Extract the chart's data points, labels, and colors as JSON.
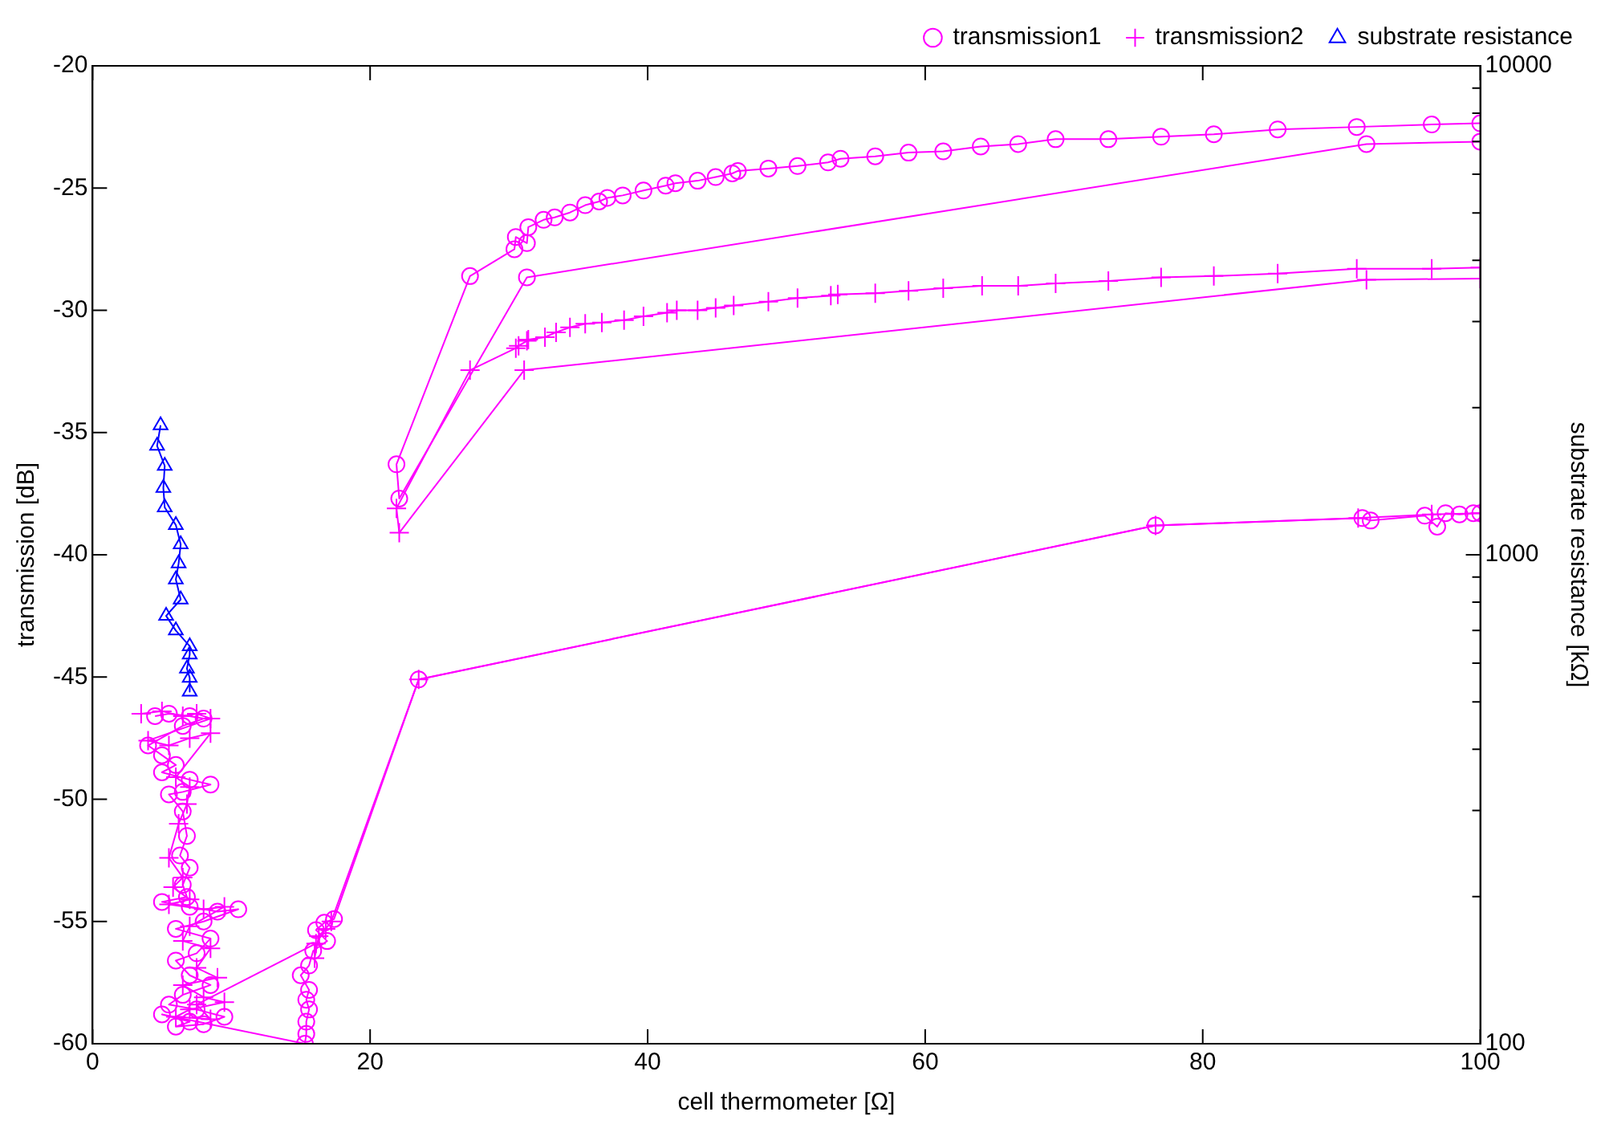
{
  "chart_data": {
    "type": "line",
    "xlabel": "cell thermometer [Ω]",
    "ylabel": "transmission [dB]",
    "y2label": "substrate resistance [kΩ]",
    "xlim": [
      0,
      100
    ],
    "xticks": [
      0,
      20,
      40,
      60,
      80,
      100
    ],
    "ylim": [
      -60,
      -20
    ],
    "yticks": [
      -60,
      -55,
      -50,
      -45,
      -40,
      -35,
      -30,
      -25,
      -20
    ],
    "y2lim": [
      100,
      10000
    ],
    "y2ticks": [
      100,
      {
        "value": 200,
        "label": null
      },
      {
        "value": 300,
        "label": null
      },
      {
        "value": 400,
        "label": null
      },
      {
        "value": 500,
        "label": null
      },
      {
        "value": 600,
        "label": null
      },
      {
        "value": 700,
        "label": null
      },
      {
        "value": 800,
        "label": null
      },
      {
        "value": 900,
        "label": null
      },
      1000,
      {
        "value": 2000,
        "label": null
      },
      {
        "value": 3000,
        "label": null
      },
      {
        "value": 4000,
        "label": null
      },
      {
        "value": 5000,
        "label": null
      },
      {
        "value": 6000,
        "label": null
      },
      {
        "value": 7000,
        "label": null
      },
      {
        "value": 8000,
        "label": null
      },
      {
        "value": 9000,
        "label": null
      },
      10000
    ],
    "log": "y2",
    "grid": false,
    "legend": "top right",
    "line_style": "solid",
    "series": [
      {
        "name": "transmission1",
        "color": "#ff00ff",
        "marker": "circle",
        "x": [
          4.5,
          5.5,
          7,
          8,
          6.5,
          4,
          5,
          6,
          5,
          7,
          8.5,
          6.5,
          5.5,
          6.5,
          6.8,
          6.3,
          7,
          6.5,
          6.8,
          5,
          7,
          9,
          10.5,
          8,
          6,
          8.5,
          7.5,
          6,
          7,
          8.5,
          6.5,
          5.5,
          7.5,
          9.5,
          8,
          6,
          7,
          5,
          15.3,
          15.4,
          15.4,
          15.6,
          15.4,
          15.6,
          15.0,
          15.6,
          15.9,
          16.9,
          16.1,
          16.7,
          17.4,
          23.5,
          76.6,
          91.5,
          92.1,
          96,
          96.9,
          97.5,
          98.5,
          99.5,
          100,
          null,
          100,
          91.8,
          31.3,
          22.1,
          21.9,
          27.2,
          30.4,
          30.5,
          31.3,
          31.4,
          32.5,
          33.3,
          34.4,
          35.5,
          36.5,
          37.1,
          38.2,
          39.7,
          41.3,
          42.0,
          43.6,
          44.9,
          46.1,
          46.5,
          48.7,
          50.8,
          53.0,
          53.9,
          56.4,
          58.8,
          61.3,
          64.0,
          66.7,
          69.4,
          73.2,
          77.0,
          80.8,
          85.4,
          91.1,
          96.5,
          100
        ],
        "values": [
          -46.6,
          -46.5,
          -46.6,
          -46.7,
          -47.0,
          -47.8,
          -48.2,
          -48.6,
          -48.9,
          -49.2,
          -49.4,
          -49.7,
          -49.8,
          -50.5,
          -51.5,
          -52.3,
          -52.8,
          -53.5,
          -54.0,
          -54.2,
          -54.4,
          -54.6,
          -54.5,
          -55.0,
          -55.3,
          -55.7,
          -56.3,
          -56.6,
          -57.2,
          -57.6,
          -58.0,
          -58.4,
          -58.6,
          -58.9,
          -59.2,
          -59.3,
          -59.1,
          -58.8,
          -60,
          -59.6,
          -59.1,
          -58.6,
          -58.2,
          -57.8,
          -57.2,
          -56.8,
          -56.2,
          -55.8,
          -55.35,
          -55.05,
          -54.9,
          -45.1,
          -38.8,
          -38.5,
          -38.6,
          -38.4,
          -38.85,
          -38.3,
          -38.35,
          -38.3,
          -38.3,
          null,
          -23.1,
          -23.2,
          -28.65,
          -37.7,
          -36.3,
          -28.6,
          -27.5,
          -27.0,
          -27.25,
          -26.6,
          -26.3,
          -26.2,
          -26.0,
          -25.7,
          -25.55,
          -25.4,
          -25.3,
          -25.1,
          -24.9,
          -24.8,
          -24.7,
          -24.55,
          -24.4,
          -24.3,
          -24.2,
          -24.1,
          -23.95,
          -23.8,
          -23.7,
          -23.55,
          -23.5,
          -23.3,
          -23.2,
          -23.0,
          -23.0,
          -22.9,
          -22.8,
          -22.6,
          -22.5,
          -22.4,
          -22.35
        ]
      },
      {
        "name": "transmission2",
        "color": "#fe00fe",
        "marker": "cross",
        "x": [
          3.5,
          5,
          6.5,
          7.5,
          8.5,
          4,
          5.5,
          7,
          8.5,
          6,
          7,
          6.8,
          6.2,
          5.5,
          6.5,
          5.8,
          7,
          5.5,
          8,
          9.5,
          7,
          6.5,
          8.5,
          7.5,
          9,
          6.5,
          8,
          9.5,
          7,
          6,
          8.5,
          7.5,
          16.1,
          16.0,
          16.3,
          16.8,
          17.2,
          23.5,
          76.6,
          91.2,
          96.5,
          100,
          null,
          100,
          91.8,
          31.1,
          22.1,
          21.9,
          27.2,
          30.5,
          30.7,
          31.3,
          31.4,
          32.6,
          33.4,
          34.4,
          35.5,
          36.7,
          38.3,
          39.7,
          41.4,
          42.1,
          43.6,
          44.9,
          46.2,
          48.7,
          50.8,
          53.2,
          53.7,
          56.4,
          58.8,
          61.3,
          64.1,
          66.7,
          69.4,
          73.2,
          77.0,
          80.8,
          85.4,
          91.1,
          96.5,
          100
        ],
        "values": [
          -46.5,
          -46.4,
          -46.6,
          -46.5,
          -46.7,
          -47.6,
          -47.8,
          -47.5,
          -47.3,
          -49.1,
          -49.5,
          -50.2,
          -51.0,
          -52.4,
          -53.2,
          -53.6,
          -54.1,
          -54.3,
          -54.5,
          -54.4,
          -55.2,
          -55.8,
          -56.1,
          -56.9,
          -57.3,
          -57.6,
          -58.1,
          -58.3,
          -58.6,
          -58.9,
          -59.0,
          -58.4,
          -55.9,
          -56.5,
          -55.6,
          -55.3,
          -55.0,
          -45.1,
          -38.8,
          -38.5,
          -38.35,
          -38.3,
          null,
          -28.7,
          -28.75,
          -32.45,
          -39.1,
          -38.1,
          -32.45,
          -31.55,
          -31.45,
          -31.25,
          -31.2,
          -31.1,
          -30.9,
          -30.7,
          -30.55,
          -30.5,
          -30.4,
          -30.25,
          -30.1,
          -30.0,
          -30.0,
          -29.9,
          -29.8,
          -29.65,
          -29.5,
          -29.4,
          -29.35,
          -29.3,
          -29.2,
          -29.1,
          -29.0,
          -29.0,
          -28.9,
          -28.8,
          -28.65,
          -28.6,
          -28.5,
          -28.3,
          -28.3,
          -28.25
        ]
      },
      {
        "name": "substrate resistance",
        "color": "#0000ff",
        "marker": "triangle",
        "axis": "y2",
        "x": [
          4.9,
          4.65,
          5.2,
          5.1,
          5.2,
          6.0,
          6.35,
          6.2,
          6.0,
          6.35,
          5.3,
          6.0,
          7.0,
          7.0,
          6.8,
          7.0,
          7.0
        ],
        "values": [
          1840,
          1670,
          1520,
          1370,
          1250,
          1150,
          1050,
          960,
          890,
          810,
          750,
          700,
          650,
          625,
          585,
          560,
          525
        ]
      }
    ]
  }
}
